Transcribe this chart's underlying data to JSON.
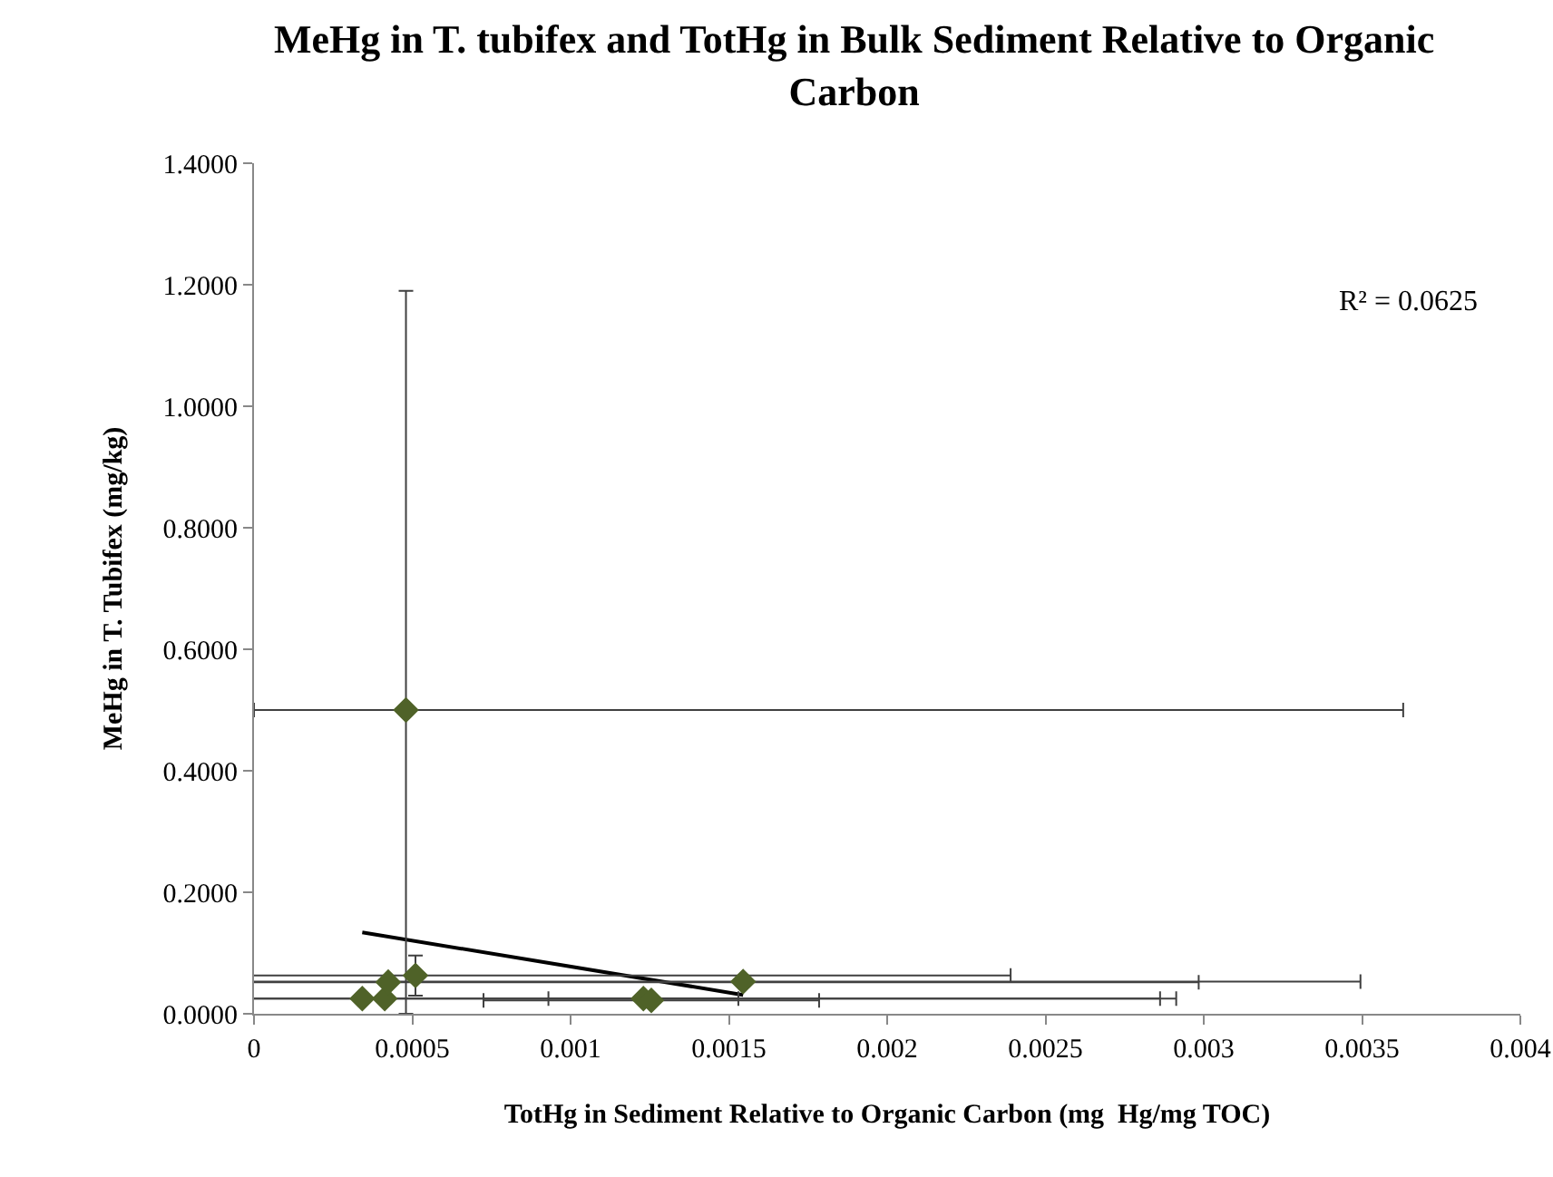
{
  "chart_data": {
    "type": "scatter",
    "title": "MeHg in T. tubifex and TotHg in Bulk Sediment Relative to Organic Carbon",
    "xlabel": "TotHg in Sediment Relative to Organic Carbon (mg  Hg/mg TOC)",
    "ylabel": "MeHg in T. Tubifex (mg/kg)",
    "annotations": [
      "R² = 0.0625"
    ],
    "series": [
      {
        "color": "#4f6228",
        "marker": "diamond",
        "x": [
          0.00048,
          0.000342,
          0.000413,
          0.000424,
          0.00051,
          0.00123,
          0.001255,
          0.001545
        ],
        "values": [
          0.5,
          0.025,
          0.025,
          0.052,
          0.063,
          0.025,
          0.022,
          0.053
        ],
        "errors": [
          [
            0,
            1.19
          ],
          null,
          null,
          null,
          0.033,
          null,
          null,
          null
        ],
        "xerrors": [
          [
            0,
            0.00363
          ],
          0.00252,
          0.0025,
          0.00256,
          0.00188,
          0.0003,
          0.00053,
          0.00195
        ]
      },
      {
        "type": "line",
        "color": "#000000",
        "marker": "none",
        "x": [
          0.000342,
          0.001545
        ],
        "values": [
          0.134,
          0.031
        ]
      }
    ],
    "xlim": [
      0,
      0.004
    ],
    "xticks": [
      0,
      0.0005,
      0.001,
      0.0015,
      0.002,
      0.0025,
      0.003,
      0.0035,
      0.004
    ],
    "ylim": [
      0,
      1.4
    ],
    "yticks": [
      {
        "value": 0,
        "label": "0.0000"
      },
      {
        "value": 0.2,
        "label": "0.2000"
      },
      {
        "value": 0.4,
        "label": "0.4000"
      },
      {
        "value": 0.6,
        "label": "0.6000"
      },
      {
        "value": 0.8,
        "label": "0.8000"
      },
      {
        "value": 1,
        "label": "1.0000"
      },
      {
        "value": 1.2,
        "label": "1.2000"
      },
      {
        "value": 1.4,
        "label": "1.4000"
      }
    ],
    "grid": false
  }
}
